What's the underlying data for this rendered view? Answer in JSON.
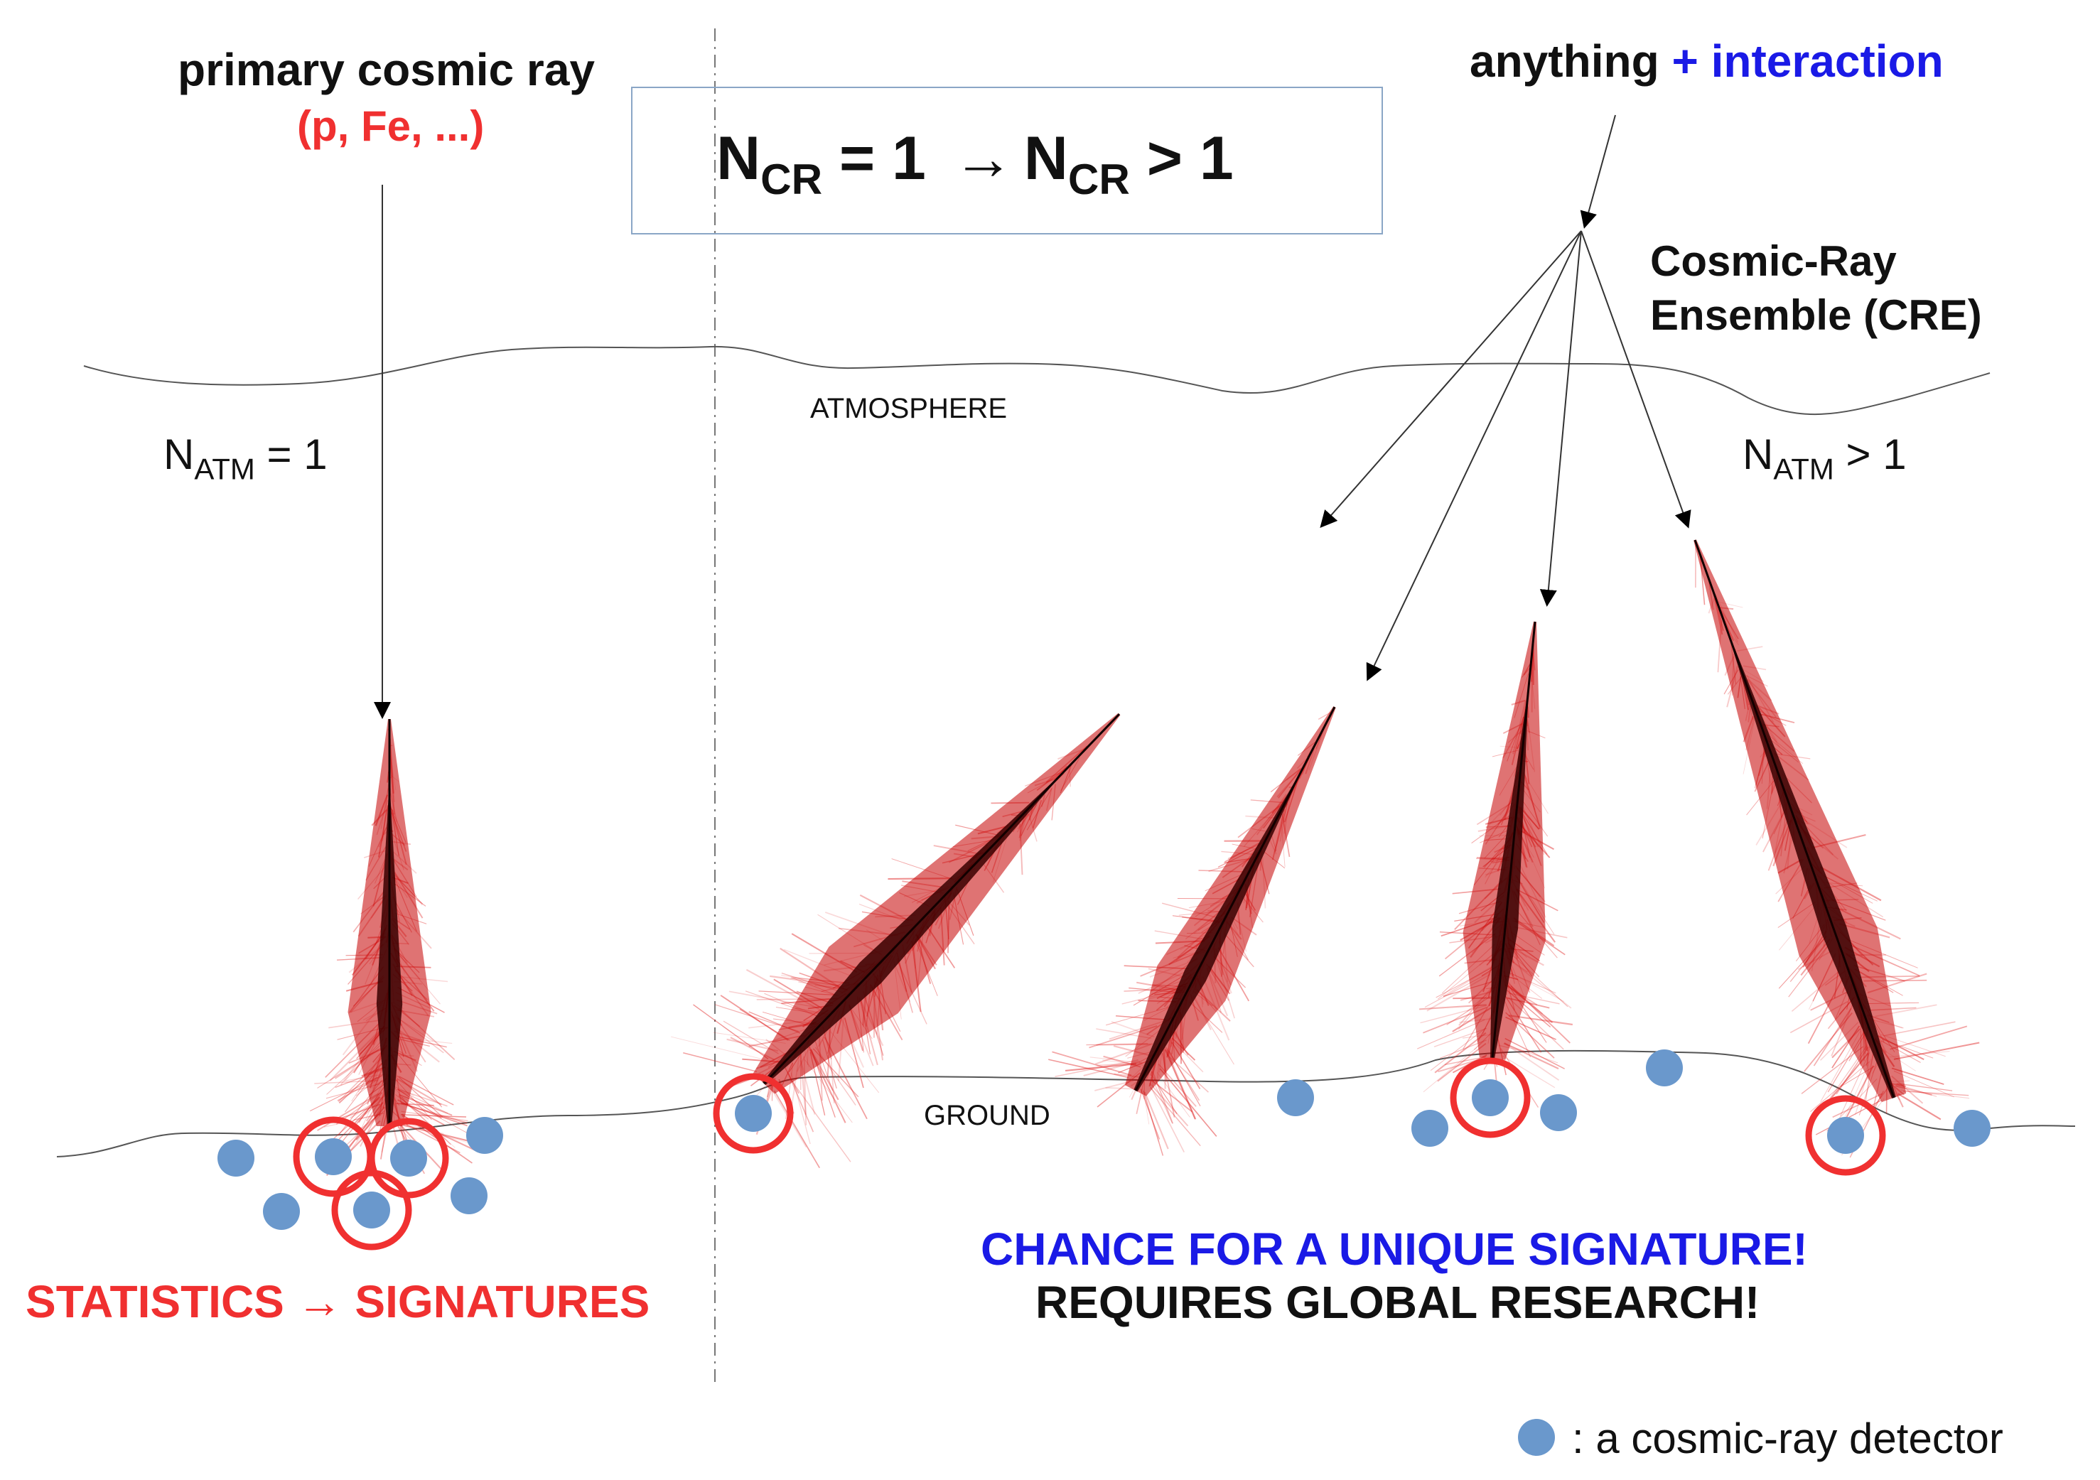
{
  "title_block": {
    "n": "N",
    "cr_sub": "CR",
    "eq_left": " = 1 ",
    "arrow": "→",
    "gt_right": " > 1"
  },
  "primary": {
    "label": "primary cosmic ray",
    "species": "(p, Fe, ...)"
  },
  "source": {
    "anything": "anything",
    "interaction": "+ interaction"
  },
  "cre_label": {
    "line1": "Cosmic-Ray",
    "line2": "Ensemble (CRE)"
  },
  "natm_left": {
    "n": "N",
    "sub": "ATM",
    "rest": " = 1"
  },
  "natm_right": {
    "n": "N",
    "sub": "ATM",
    "rest": " > 1"
  },
  "atmosphere_label": "ATMOSPHERE",
  "ground_label": "GROUND",
  "left_caption": "STATISTICS → SIGNATURES",
  "right_caption": {
    "line1": "CHANCE FOR A UNIQUE SIGNATURE!",
    "line2": "REQUIRES GLOBAL RESEARCH!"
  },
  "legend": {
    "text": ": a cosmic-ray detector"
  },
  "colors": {
    "red": "#f03030",
    "blue": "#1a1ae6",
    "detector": "#6a98cc",
    "shower": "#c40000",
    "line": "#555555"
  }
}
